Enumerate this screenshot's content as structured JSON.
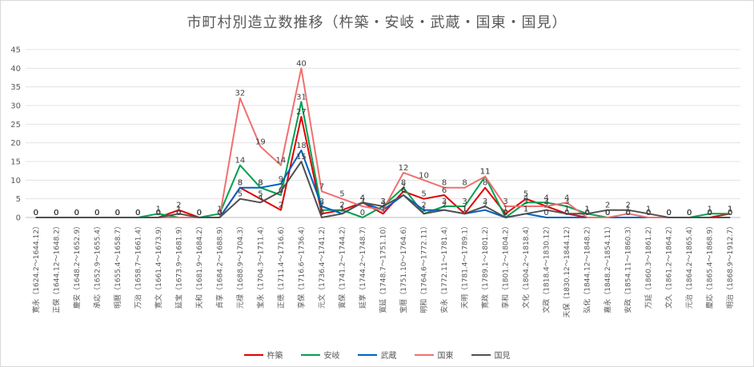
{
  "chart_data": {
    "type": "line",
    "title": "市町村別造立数推移（杵築・安岐・武蔵・国東・国見）",
    "ylim": [
      0,
      45
    ],
    "yticks": [
      0,
      5,
      10,
      15,
      20,
      25,
      30,
      35,
      40,
      45
    ],
    "grid": true,
    "legend_position": "bottom",
    "categories": [
      "寛永（1624.2～1644.12）",
      "正保（1644.12～1648.2）",
      "慶安（1648.2～1652.9）",
      "承応（1652.9～1655.4）",
      "明暦（1655.4～1658.7）",
      "万治（1658.7～1661.4）",
      "寛文（1661.4～1673.9）",
      "延宝（1673.9～1681.9）",
      "天和（1681.9～1684.2）",
      "貞享（1684.2～1688.9）",
      "元禄（1688.9～1704.3）",
      "宝永（1704.3～1711.4）",
      "正徳（1711.4～1716.6）",
      "享保（1716.6～1736.4）",
      "元文（1736.4～1741.2）",
      "寛保（1741.2～1744.2）",
      "延享（1744.2～1748.7）",
      "寛延（1748.7～1751.10）",
      "宝暦（1751.10～1764.6）",
      "明和（1764.6～1772.11）",
      "安永（1772.11～1781.4）",
      "天明（1781.4～1789.1）",
      "寛政（1789.1～1801.2）",
      "享和（1801.2～1804.2）",
      "文化（1804.2～1818.4）",
      "文政（1818.4～1830.12）",
      "天保（1830.12～1844.12）",
      "弘化（1844.12～1848.2）",
      "嘉永（1848.2～1854.11）",
      "安政（1854.11～1860.3）",
      "万延（1860.3～1861.2）",
      "文久（1861.2～1864.2）",
      "元治（1864.2～1865.4）",
      "慶応（1865.4～1868.9）",
      "明治（1868.9～1912.7）"
    ],
    "series": [
      {
        "name": "杵築",
        "color": "#e00000",
        "values": [
          0,
          0,
          0,
          0,
          0,
          0,
          0,
          2,
          0,
          0,
          8,
          5,
          2,
          27,
          1,
          2,
          4,
          1,
          7,
          5,
          6,
          1,
          8,
          1,
          5,
          3,
          1,
          0,
          0,
          0,
          0,
          0,
          0,
          0,
          1
        ]
      },
      {
        "name": "安岐",
        "color": "#00a050",
        "values": [
          0,
          0,
          0,
          0,
          0,
          0,
          1,
          0,
          0,
          1,
          14,
          8,
          6,
          31,
          2,
          2,
          0,
          3,
          8,
          1,
          3,
          3,
          11,
          0,
          4,
          4,
          3,
          1,
          0,
          0,
          0,
          0,
          0,
          1,
          1
        ]
      },
      {
        "name": "武蔵",
        "color": "#0060c0",
        "values": [
          0,
          0,
          0,
          0,
          0,
          0,
          0,
          0,
          0,
          0,
          8,
          8,
          9,
          18,
          3,
          1,
          4,
          2,
          6,
          2,
          2,
          1,
          2,
          0,
          1,
          0,
          0,
          0,
          0,
          0,
          0,
          0,
          0,
          0,
          0
        ]
      },
      {
        "name": "国東",
        "color": "#f07070",
        "values": [
          0,
          0,
          0,
          0,
          0,
          0,
          0,
          0,
          0,
          0,
          32,
          19,
          14,
          40,
          7,
          5,
          3,
          2,
          12,
          10,
          8,
          8,
          11,
          3,
          3,
          3,
          4,
          0,
          0,
          1,
          0,
          0,
          0,
          0,
          0
        ]
      },
      {
        "name": "国見",
        "color": "#505050",
        "values": [
          0,
          0,
          0,
          0,
          0,
          0,
          0,
          1,
          0,
          0,
          5,
          4,
          7,
          15,
          0,
          1,
          4,
          3,
          6,
          1,
          2,
          1,
          3,
          0,
          1,
          2,
          1,
          1,
          2,
          2,
          1,
          0,
          0,
          0,
          0
        ]
      }
    ]
  }
}
